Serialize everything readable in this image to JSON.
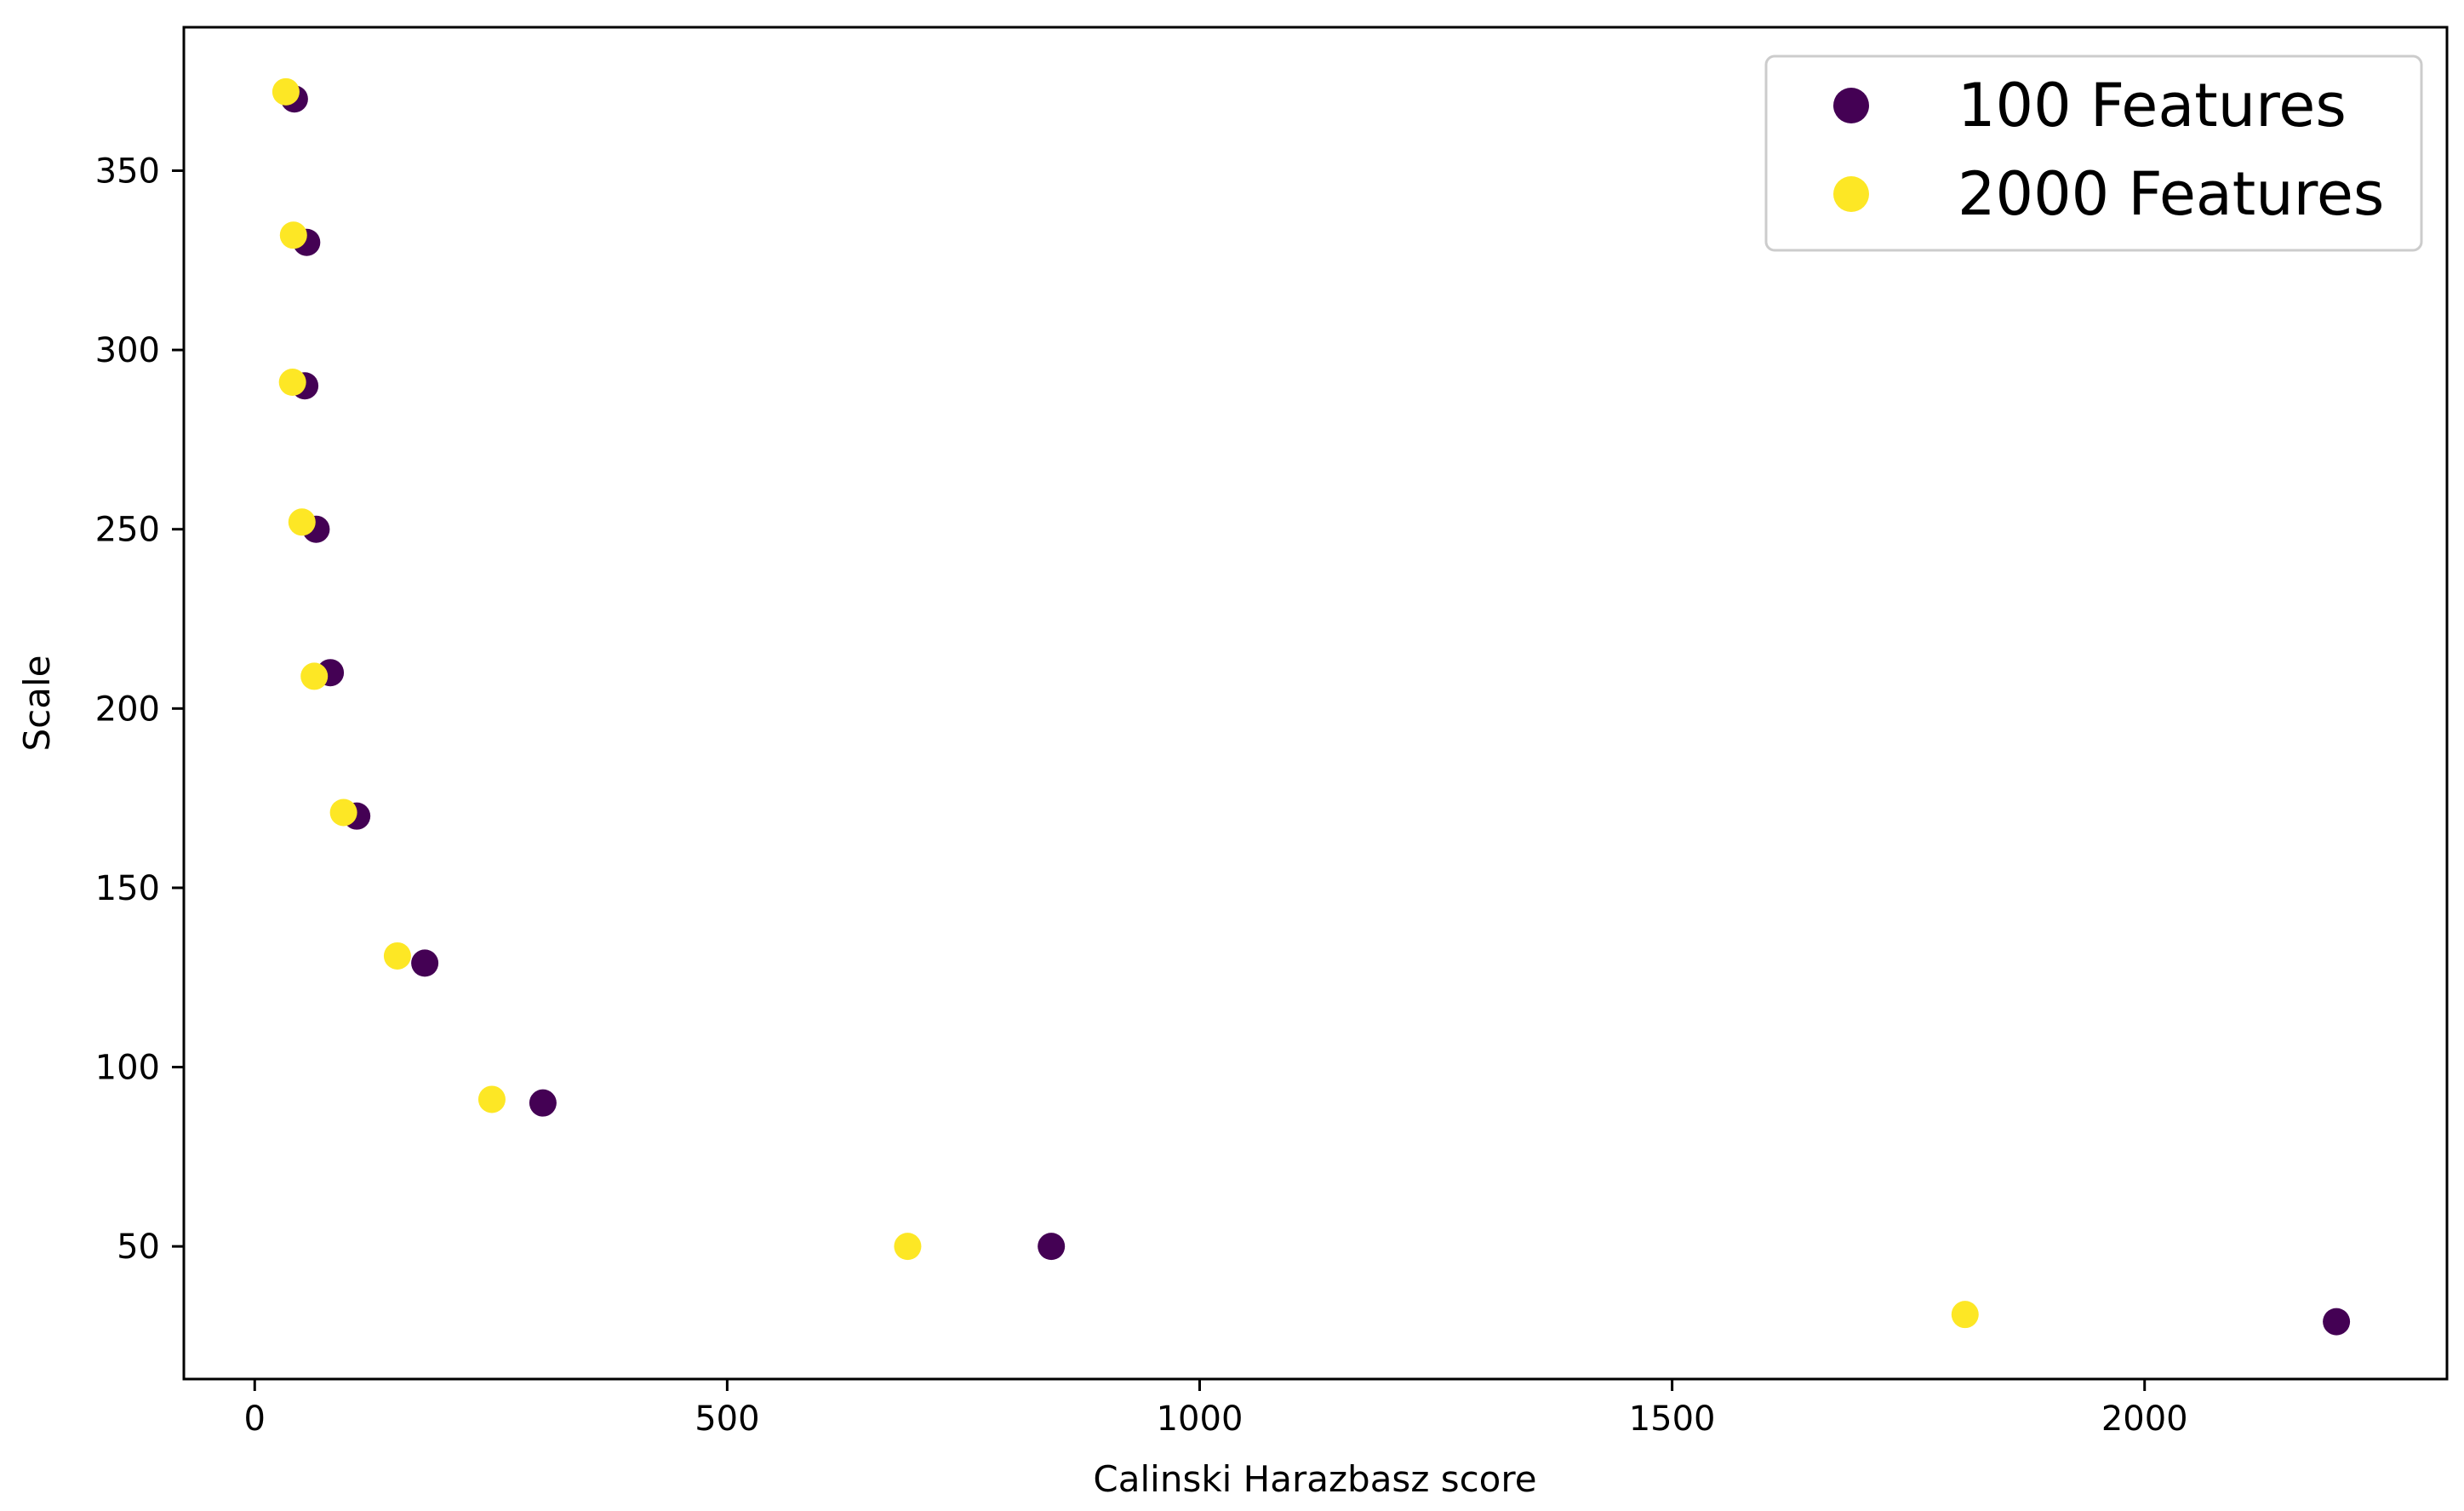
{
  "chart_data": {
    "type": "scatter",
    "title": "",
    "xlabel": "Calinski Harazbasz score",
    "ylabel": "Scale",
    "xlim": [
      -75,
      2320
    ],
    "ylim": [
      13,
      390
    ],
    "x_ticks": [
      0,
      500,
      1000,
      1500,
      2000
    ],
    "y_ticks": [
      50,
      100,
      150,
      200,
      250,
      300,
      350
    ],
    "x_tick_labels": [
      "0",
      "500",
      "1000",
      "1500",
      "2000"
    ],
    "y_tick_labels": [
      "50",
      "100",
      "150",
      "200",
      "250",
      "300",
      "350"
    ],
    "grid": false,
    "legend_position": "top-right",
    "series": [
      {
        "name": "100 Features",
        "color": "#440154",
        "points": [
          {
            "x": 2203,
            "y": 29
          },
          {
            "x": 843,
            "y": 50
          },
          {
            "x": 305,
            "y": 90
          },
          {
            "x": 180,
            "y": 129
          },
          {
            "x": 108,
            "y": 170
          },
          {
            "x": 80,
            "y": 210
          },
          {
            "x": 65,
            "y": 250
          },
          {
            "x": 53,
            "y": 290
          },
          {
            "x": 55,
            "y": 330
          },
          {
            "x": 42,
            "y": 370
          }
        ]
      },
      {
        "name": "2000 Features",
        "color": "#fde725",
        "points": [
          {
            "x": 1810,
            "y": 31
          },
          {
            "x": 691,
            "y": 50
          },
          {
            "x": 251,
            "y": 91
          },
          {
            "x": 151,
            "y": 131
          },
          {
            "x": 94,
            "y": 171
          },
          {
            "x": 63,
            "y": 209
          },
          {
            "x": 50,
            "y": 252
          },
          {
            "x": 40,
            "y": 291
          },
          {
            "x": 41,
            "y": 332
          },
          {
            "x": 33,
            "y": 372
          }
        ]
      }
    ]
  }
}
